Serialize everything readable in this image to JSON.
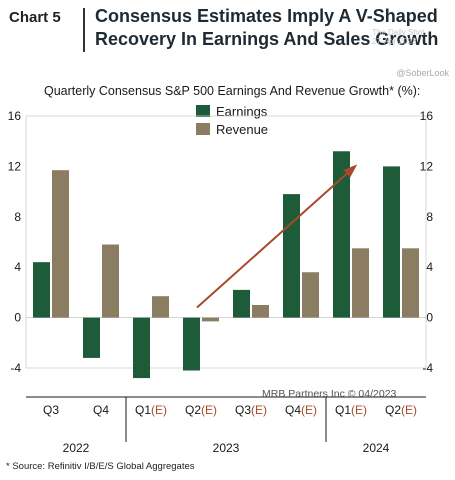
{
  "header": {
    "chart_number": "Chart 5",
    "title_line1": "Consensus Estimates Imply A V-Shaped",
    "title_line2": "Recovery In Earnings And Sales Growth",
    "watermark_line1": "The Daily Shot",
    "watermark_line2": "27-Apr-2023",
    "handle": "@SoberLook"
  },
  "footer": {
    "source": "* Source: Refinitiv I/B/E/S Global Aggregates",
    "credit": "MRB Partners Inc © 04/2023"
  },
  "colors": {
    "earnings": "#1e5b39",
    "revenue": "#8b7d61",
    "arrow": "#a64a2a",
    "estimate_marker": "#a64a2a"
  },
  "chart_data": {
    "type": "bar",
    "title": "Quarterly Consensus S&P 500 Earnings And Revenue Growth* (%):",
    "categories": [
      {
        "label": "Q3",
        "est": ""
      },
      {
        "label": "Q4",
        "est": ""
      },
      {
        "label": "Q1",
        "est": "(E)"
      },
      {
        "label": "Q2",
        "est": "(E)"
      },
      {
        "label": "Q3",
        "est": "(E)"
      },
      {
        "label": "Q4",
        "est": "(E)"
      },
      {
        "label": "Q1",
        "est": "(E)"
      },
      {
        "label": "Q2",
        "est": "(E)"
      }
    ],
    "years": [
      {
        "label": "2022",
        "at": 0.5
      },
      {
        "label": "2023",
        "at": 3.5
      },
      {
        "label": "2024",
        "at": 6.5
      }
    ],
    "series": [
      {
        "name": "Earnings",
        "values": [
          4.4,
          -3.2,
          -4.8,
          -4.2,
          2.2,
          9.8,
          13.2,
          12.0
        ]
      },
      {
        "name": "Revenue",
        "values": [
          11.7,
          5.8,
          1.7,
          -0.3,
          1.0,
          3.6,
          5.5,
          5.5
        ]
      }
    ],
    "ylim": [
      -4,
      16
    ],
    "yticks": [
      -4,
      0,
      4,
      8,
      12,
      16
    ],
    "legend": "top-center",
    "arrow": {
      "from": {
        "category": 3,
        "value": 0.8
      },
      "to": {
        "category": 6.2,
        "value": 12.0
      }
    }
  }
}
